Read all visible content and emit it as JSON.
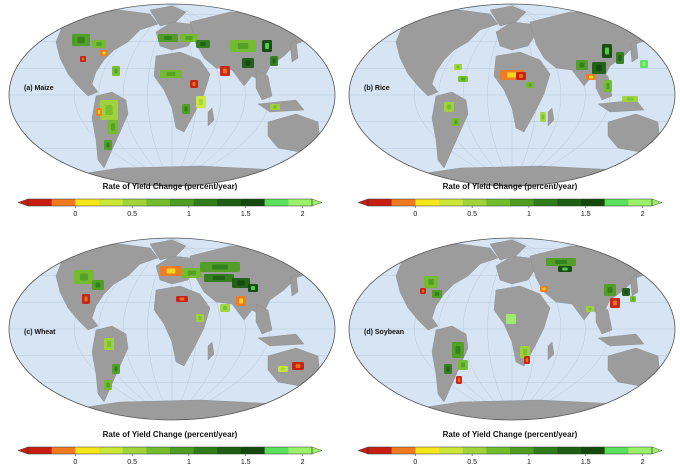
{
  "colorbar": {
    "title": "Rate of Yield Change (percent/year)",
    "ticks": [
      "0",
      "0.5",
      "1",
      "1.5",
      "2"
    ],
    "colors": [
      "#c81e10",
      "#f07a20",
      "#f5e61a",
      "#cbe83a",
      "#9fd43a",
      "#73bd2c",
      "#4e9e22",
      "#2f7c1a",
      "#1d5e12",
      "#114a0a",
      "#5be05b",
      "#9cf06a"
    ]
  },
  "map_colors": {
    "ocean": "#d6e4f3",
    "land": "#9c9c9c",
    "grid": "#b9c9dc",
    "outline": "#555555"
  },
  "panels": [
    {
      "id": "maize",
      "label": "(a) Maize"
    },
    {
      "id": "rice",
      "label": "(b) Rice"
    },
    {
      "id": "wheat",
      "label": "(c) Wheat"
    },
    {
      "id": "soybean",
      "label": "(d) Soybean"
    }
  ]
}
